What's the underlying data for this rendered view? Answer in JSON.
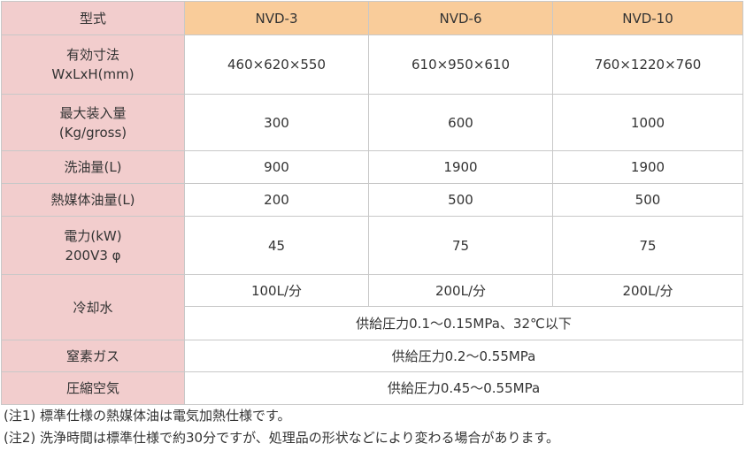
{
  "table": {
    "header": {
      "label": "型式",
      "models": [
        "NVD-3",
        "NVD-6",
        "NVD-10"
      ]
    },
    "rows": {
      "size": {
        "label_line1": "有効寸法",
        "label_line2": "WxLxH(mm)",
        "values": [
          "460×620×550",
          "610×950×610",
          "760×1220×760"
        ]
      },
      "max_load": {
        "label_line1": "最大装入量",
        "label_line2": "(Kg/gross)",
        "values": [
          "300",
          "600",
          "1000"
        ]
      },
      "wash_oil": {
        "label": "洗油量(L)",
        "values": [
          "900",
          "1900",
          "1900"
        ]
      },
      "heat_oil": {
        "label": "熱媒体油量(L)",
        "values": [
          "200",
          "500",
          "500"
        ]
      },
      "power": {
        "label_line1": "電力(kW)",
        "label_line2": "200V3 φ",
        "values": [
          "45",
          "75",
          "75"
        ]
      },
      "cooling_water": {
        "label": "冷却水",
        "values": [
          "100L/分",
          "200L/分",
          "200L/分"
        ],
        "shared": "供給圧力0.1～0.15MPa、32℃以下"
      },
      "nitrogen": {
        "label": "窒素ガス",
        "shared": "供給圧力0.2～0.55MPa"
      },
      "compressed_air": {
        "label": "圧縮空気",
        "shared": "供給圧力0.45～0.55MPa"
      }
    }
  },
  "notes": [
    "(注1) 標準仕様の熱媒体油は電気加熱仕様です。",
    "(注2) 洗浄時間は標準仕様で約30分ですが、処理品の形状などにより変わる場合があります。"
  ],
  "colors": {
    "label_cell_bg": "#f2cdcd",
    "model_cell_bg": "#f9cc9a",
    "border": "#c8c8c8"
  }
}
